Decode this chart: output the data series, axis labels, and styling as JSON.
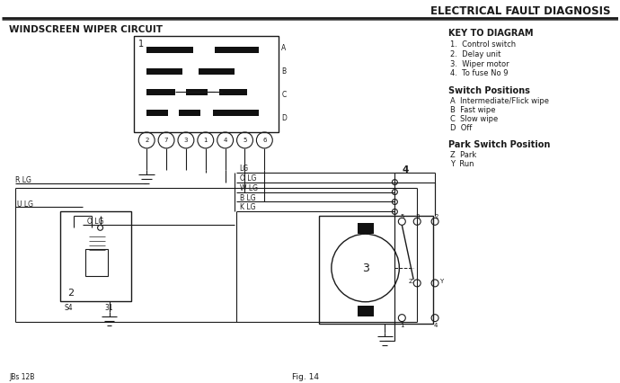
{
  "title": "ELECTRICAL FAULT DIAGNOSIS",
  "subtitle": "WINDSCREEN WIPER CIRCUIT",
  "fig_label": "Fig. 14",
  "page_ref": "JBs 12B",
  "bg_color": "#ffffff",
  "line_color": "#1a1a1a",
  "key_title": "KEY TO DIAGRAM",
  "key_items": [
    "1.  Control switch",
    "2.  Delay unit",
    "3.  Wiper motor",
    "4.  To fuse No 9"
  ],
  "switch_title": "Switch Positions",
  "switch_items": [
    "A  Intermediate/Flick wipe",
    "B  Fast wipe",
    "C  Slow wipe",
    "D  Off"
  ],
  "park_title": "Park Switch Position",
  "park_items": [
    "Z  Park",
    "Y  Run"
  ],
  "wire_labels": [
    "LG",
    "O LG",
    "W LG",
    "B LG",
    "K LG"
  ],
  "left_labels": [
    "R LG",
    "U LG",
    "O LG"
  ],
  "connector_labels": [
    "A",
    "B",
    "C",
    "D"
  ],
  "bottom_pins": [
    "2",
    "7",
    "3",
    "1",
    "4",
    "5",
    "6"
  ],
  "motor_label": "3",
  "delay_label": "2"
}
